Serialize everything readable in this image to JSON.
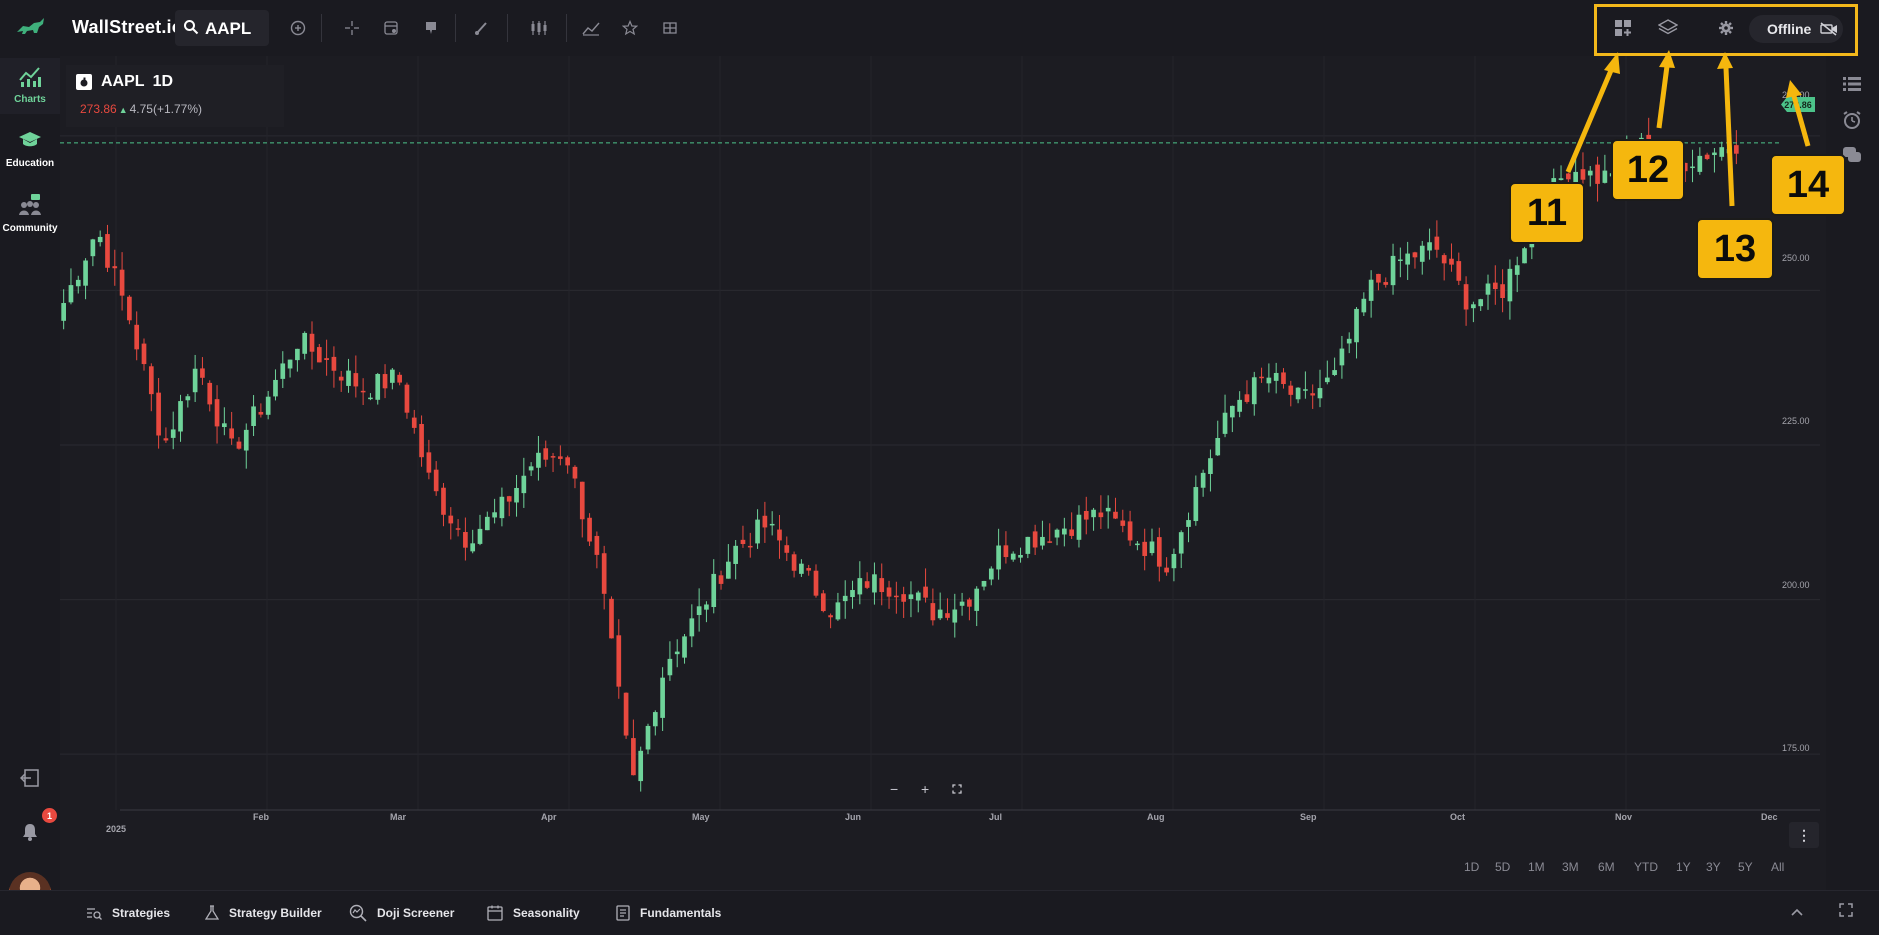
{
  "app": {
    "brand": "WallStreet.io"
  },
  "search": {
    "symbol": "AAPL"
  },
  "toolbar": {
    "icons": [
      "add-circle-icon",
      "crosshair-icon",
      "template-icon",
      "alert-pin-icon",
      "brush-icon",
      "candle-type-icon",
      "indicators-icon",
      "star-icon",
      "layout-grid-icon"
    ],
    "right_icons": [
      "add-layout-icon",
      "layers-icon",
      "gear-icon"
    ],
    "status_label": "Offline"
  },
  "sidebar": {
    "items": [
      {
        "label": "Charts",
        "icon": "chart-icon",
        "active": true
      },
      {
        "label": "Education",
        "icon": "graduation-cap-icon",
        "active": false
      },
      {
        "label": "Community",
        "icon": "people-icon",
        "active": false
      }
    ],
    "notification_count": "1"
  },
  "legend": {
    "symbol": "AAPL",
    "timeframe": "1D",
    "close": "273.86",
    "change": "4.75(+1.77%)"
  },
  "price_axis": {
    "labels": [
      "275.00",
      "250.00",
      "225.00",
      "200.00",
      "175.00"
    ],
    "last_price": "273.86"
  },
  "time_axis": {
    "labels": [
      "2025",
      "Feb",
      "Mar",
      "Apr",
      "May",
      "Jun",
      "Jul",
      "Aug",
      "Sep",
      "Oct",
      "Nov",
      "Dec"
    ]
  },
  "range_buttons": [
    "1D",
    "5D",
    "1M",
    "3M",
    "6M",
    "YTD",
    "1Y",
    "3Y",
    "5Y",
    "All"
  ],
  "bottom_nav": {
    "items": [
      "Strategies",
      "Strategy Builder",
      "Doji Screener",
      "Seasonality",
      "Fundamentals"
    ]
  },
  "annotations": {
    "callouts": [
      "11",
      "12",
      "13",
      "14"
    ],
    "highlight_color": "#f3b81b"
  },
  "colors": {
    "up": "#6fd39a",
    "down": "#e8493f",
    "background": "#1c1c22"
  },
  "chart_data": {
    "type": "candlestick",
    "symbol": "AAPL",
    "interval": "1D",
    "x": [
      "2025-01",
      "2025-02",
      "2025-03",
      "2025-04",
      "2025-05",
      "2025-06",
      "2025-07",
      "2025-08",
      "2025-09",
      "2025-10",
      "2025-11"
    ],
    "close_path": [
      248,
      260,
      245,
      225,
      238,
      224,
      232,
      242,
      238,
      234,
      236,
      218,
      210,
      214,
      222,
      224,
      205,
      170,
      190,
      198,
      208,
      212,
      205,
      198,
      203,
      202,
      198,
      200,
      208,
      210,
      212,
      214,
      210,
      206,
      220,
      232,
      236,
      232,
      236,
      250,
      255,
      257,
      248,
      250,
      262,
      270,
      268,
      274,
      270,
      272,
      274
    ],
    "ylim": [
      165,
      285
    ],
    "last_close": 273.86,
    "change": 4.75,
    "change_pct": 1.77
  }
}
